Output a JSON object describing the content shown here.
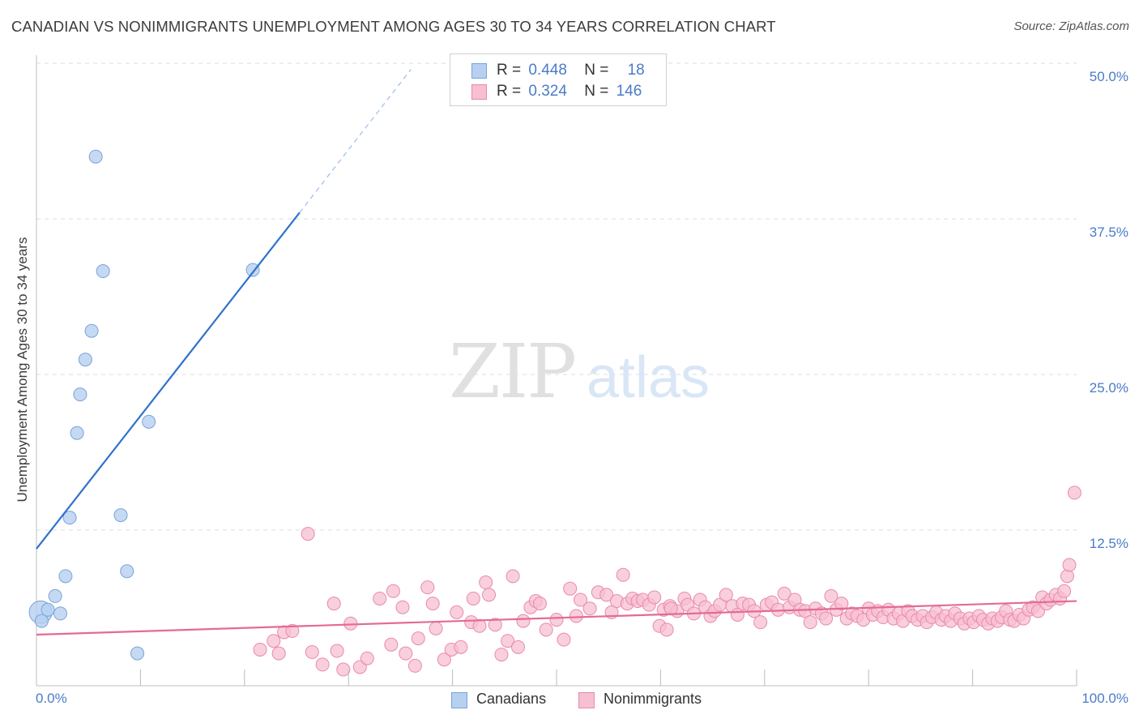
{
  "title": "CANADIAN VS NONIMMIGRANTS UNEMPLOYMENT AMONG AGES 30 TO 34 YEARS CORRELATION CHART",
  "source": "Source: ZipAtlas.com",
  "watermark": {
    "zip": "ZIP",
    "atlas": "atlas"
  },
  "legend": {
    "r_label": "R =",
    "n_label": "N =",
    "canadians": {
      "r": "0.448",
      "n": "18"
    },
    "nonimmigrants": {
      "r": "0.324",
      "n": "146"
    }
  },
  "bottom_legend": {
    "canadians": "Canadians",
    "nonimmigrants": "Nonimmigrants"
  },
  "colors": {
    "canadians_fill": "#b7d0f0",
    "canadians_stroke": "#7aa3d8",
    "canadians_line": "#2f72cc",
    "nonimmigrants_fill": "#f7bfd1",
    "nonimmigrants_stroke": "#e98aaa",
    "nonimmigrants_line": "#e36b93",
    "tick_text": "#4a7bc8"
  },
  "chart_data": {
    "type": "scatter",
    "title": "CANADIAN VS NONIMMIGRANTS UNEMPLOYMENT AMONG AGES 30 TO 34 YEARS CORRELATION CHART",
    "xlabel": "",
    "ylabel": "Unemployment Among Ages 30 to 34 years",
    "xlim": [
      0,
      100
    ],
    "ylim": [
      0,
      50
    ],
    "x_tick_labels": [
      "0.0%",
      "100.0%"
    ],
    "y_tick_labels": [
      "12.5%",
      "25.0%",
      "37.5%",
      "50.0%"
    ],
    "y_ticks": [
      12.5,
      25,
      37.5,
      50
    ],
    "grid": true,
    "series": [
      {
        "name": "Canadians",
        "r": 0.448,
        "n": 18,
        "trend": {
          "x0": 0,
          "y0": 11.0,
          "x1": 25.3,
          "y1": 38.0,
          "dashed_to_x": 36,
          "dashed_to_y": 49.5
        },
        "points": [
          [
            0.4,
            5.9,
            "big"
          ],
          [
            0.5,
            5.2
          ],
          [
            1.1,
            6.1
          ],
          [
            1.8,
            7.2
          ],
          [
            2.3,
            5.8
          ],
          [
            2.8,
            8.8
          ],
          [
            3.2,
            13.5
          ],
          [
            3.9,
            20.3
          ],
          [
            4.2,
            23.4
          ],
          [
            4.7,
            26.2
          ],
          [
            5.3,
            28.5
          ],
          [
            5.7,
            42.5
          ],
          [
            6.4,
            33.3
          ],
          [
            8.1,
            13.7
          ],
          [
            8.7,
            9.2
          ],
          [
            9.7,
            2.6
          ],
          [
            10.8,
            21.2
          ],
          [
            20.8,
            33.4
          ]
        ]
      },
      {
        "name": "Nonimmigrants",
        "r": 0.324,
        "n": 146,
        "trend": {
          "x0": 0,
          "y0": 4.1,
          "x1": 100,
          "y1": 6.8
        },
        "points": [
          [
            21.5,
            2.9
          ],
          [
            22.8,
            3.6
          ],
          [
            23.3,
            2.6
          ],
          [
            23.8,
            4.3
          ],
          [
            24.6,
            4.4
          ],
          [
            26.1,
            12.2
          ],
          [
            26.5,
            2.7
          ],
          [
            27.5,
            1.7
          ],
          [
            28.6,
            6.6
          ],
          [
            28.9,
            2.8
          ],
          [
            29.5,
            1.3
          ],
          [
            30.2,
            5.0
          ],
          [
            31.1,
            1.5
          ],
          [
            31.8,
            2.2
          ],
          [
            33.0,
            7.0
          ],
          [
            34.1,
            3.3
          ],
          [
            34.3,
            7.6
          ],
          [
            35.2,
            6.3
          ],
          [
            35.5,
            2.6
          ],
          [
            36.4,
            1.6
          ],
          [
            36.7,
            3.8
          ],
          [
            37.6,
            7.9
          ],
          [
            38.1,
            6.6
          ],
          [
            38.4,
            4.6
          ],
          [
            39.2,
            2.1
          ],
          [
            39.9,
            2.9
          ],
          [
            40.4,
            5.9
          ],
          [
            40.8,
            3.1
          ],
          [
            41.8,
            5.1
          ],
          [
            42.0,
            7.0
          ],
          [
            42.6,
            4.8
          ],
          [
            43.2,
            8.3
          ],
          [
            43.5,
            7.3
          ],
          [
            44.1,
            4.9
          ],
          [
            44.7,
            2.5
          ],
          [
            45.3,
            3.6
          ],
          [
            45.8,
            8.8
          ],
          [
            46.3,
            3.1
          ],
          [
            46.8,
            5.2
          ],
          [
            47.5,
            6.3
          ],
          [
            48.0,
            6.8
          ],
          [
            48.4,
            6.6
          ],
          [
            49.0,
            4.5
          ],
          [
            50.0,
            5.3
          ],
          [
            50.7,
            3.7
          ],
          [
            51.3,
            7.8
          ],
          [
            51.9,
            5.6
          ],
          [
            52.3,
            6.9
          ],
          [
            53.2,
            6.2
          ],
          [
            54.0,
            7.5
          ],
          [
            54.8,
            7.3
          ],
          [
            55.3,
            5.9
          ],
          [
            55.8,
            6.8
          ],
          [
            56.4,
            8.9
          ],
          [
            56.8,
            6.6
          ],
          [
            57.3,
            7.0
          ],
          [
            57.8,
            6.8
          ],
          [
            58.3,
            6.9
          ],
          [
            58.9,
            6.5
          ],
          [
            59.4,
            7.1
          ],
          [
            59.9,
            4.8
          ],
          [
            60.3,
            6.1
          ],
          [
            60.6,
            4.5
          ],
          [
            60.9,
            6.4
          ],
          [
            61.6,
            6.0
          ],
          [
            62.3,
            7.0
          ],
          [
            62.6,
            6.5
          ],
          [
            63.2,
            5.8
          ],
          [
            63.8,
            6.9
          ],
          [
            64.3,
            6.3
          ],
          [
            64.8,
            5.6
          ],
          [
            65.2,
            6.0
          ],
          [
            65.7,
            6.5
          ],
          [
            66.3,
            7.3
          ],
          [
            66.9,
            6.4
          ],
          [
            67.4,
            5.7
          ],
          [
            67.9,
            6.6
          ],
          [
            68.5,
            6.5
          ],
          [
            69.0,
            6.0
          ],
          [
            69.6,
            5.1
          ],
          [
            70.2,
            6.5
          ],
          [
            70.7,
            6.7
          ],
          [
            71.3,
            6.1
          ],
          [
            71.9,
            7.4
          ],
          [
            72.4,
            6.3
          ],
          [
            72.9,
            6.9
          ],
          [
            73.4,
            6.1
          ],
          [
            73.9,
            6.0
          ],
          [
            74.4,
            5.1
          ],
          [
            74.9,
            6.2
          ],
          [
            75.5,
            5.8
          ],
          [
            75.9,
            5.4
          ],
          [
            76.4,
            7.2
          ],
          [
            76.9,
            6.1
          ],
          [
            77.4,
            6.6
          ],
          [
            77.9,
            5.4
          ],
          [
            78.4,
            5.8
          ],
          [
            78.9,
            5.6
          ],
          [
            79.5,
            5.3
          ],
          [
            80.0,
            6.2
          ],
          [
            80.4,
            5.7
          ],
          [
            80.9,
            6.0
          ],
          [
            81.4,
            5.5
          ],
          [
            81.9,
            6.1
          ],
          [
            82.4,
            5.4
          ],
          [
            82.9,
            5.8
          ],
          [
            83.3,
            5.2
          ],
          [
            83.8,
            6.0
          ],
          [
            84.2,
            5.6
          ],
          [
            84.7,
            5.3
          ],
          [
            85.2,
            5.6
          ],
          [
            85.6,
            5.1
          ],
          [
            86.1,
            5.5
          ],
          [
            86.5,
            5.9
          ],
          [
            87.0,
            5.3
          ],
          [
            87.4,
            5.6
          ],
          [
            87.9,
            5.2
          ],
          [
            88.3,
            5.8
          ],
          [
            88.8,
            5.4
          ],
          [
            89.2,
            5.0
          ],
          [
            89.7,
            5.4
          ],
          [
            90.1,
            5.1
          ],
          [
            90.6,
            5.6
          ],
          [
            91.0,
            5.3
          ],
          [
            91.5,
            5.0
          ],
          [
            91.9,
            5.4
          ],
          [
            92.4,
            5.2
          ],
          [
            92.8,
            5.5
          ],
          [
            93.2,
            6.0
          ],
          [
            93.6,
            5.3
          ],
          [
            94.0,
            5.2
          ],
          [
            94.5,
            5.7
          ],
          [
            94.9,
            5.4
          ],
          [
            95.4,
            6.1
          ],
          [
            95.8,
            6.3
          ],
          [
            96.3,
            6.0
          ],
          [
            96.7,
            7.1
          ],
          [
            97.1,
            6.6
          ],
          [
            97.5,
            6.9
          ],
          [
            98.0,
            7.3
          ],
          [
            98.4,
            7.0
          ],
          [
            98.8,
            7.6
          ],
          [
            99.1,
            8.8
          ],
          [
            99.3,
            9.7
          ],
          [
            99.8,
            15.5
          ],
          [
            61.0,
            6.2
          ]
        ]
      }
    ]
  }
}
